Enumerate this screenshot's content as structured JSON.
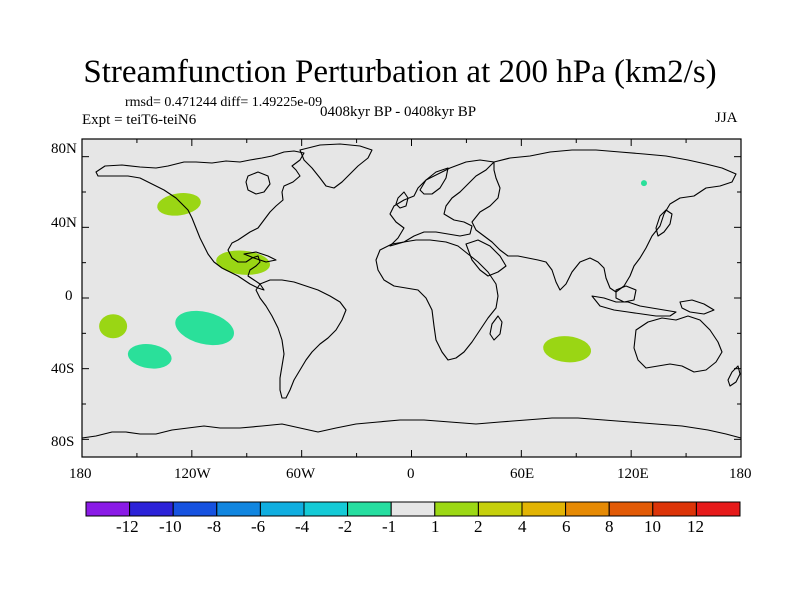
{
  "title": "Streamfunction Perturbation at 200 hPa (km2/s)",
  "stats": "rmsd= 0.471244 diff= 1.49225e-09",
  "experiment": "Expt = teiT6-teiN6",
  "period": "0408kyr BP - 0408kyr BP",
  "season": "JJA",
  "map": {
    "background_color": "#e6e6e6",
    "lat_ticks": [
      "80N",
      "40N",
      "0",
      "40S",
      "80S"
    ],
    "lon_ticks": [
      "180",
      "120W",
      "60W",
      "0",
      "60E",
      "120E",
      "180"
    ]
  },
  "anomalies": [
    {
      "name": "north-pacific-positive",
      "lon": -127,
      "lat": 53,
      "value": 1.5,
      "color": "#9ad614"
    },
    {
      "name": "central-america-positive",
      "lon": -92,
      "lat": 20,
      "value": 1.5,
      "color": "#9ad614"
    },
    {
      "name": "south-pacific-positive",
      "lon": -163,
      "lat": -16,
      "value": 1.5,
      "color": "#9ad614"
    },
    {
      "name": "southeast-pacific-negative",
      "lon": -113,
      "lat": -17,
      "value": -1.5,
      "color": "#2ae09a"
    },
    {
      "name": "southwest-pacific-negative",
      "lon": -143,
      "lat": -33,
      "value": -1.5,
      "color": "#2ae09a"
    },
    {
      "name": "south-indian-positive",
      "lon": 85,
      "lat": -29,
      "value": 1.5,
      "color": "#9ad614"
    },
    {
      "name": "siberia-negative",
      "lon": 127,
      "lat": 65,
      "value": -1.5,
      "color": "#2ae09a"
    }
  ],
  "colorbar": {
    "labels": [
      "-12",
      "-10",
      "-8",
      "-6",
      "-4",
      "-2",
      "-1",
      "1",
      "2",
      "4",
      "6",
      "8",
      "10",
      "12"
    ],
    "colors": [
      "#8a1be6",
      "#2c22d8",
      "#1652e0",
      "#1186e0",
      "#10aee0",
      "#14cad6",
      "#26dea0",
      "#e6e6e6",
      "#9cd814",
      "#c6d00c",
      "#e2b404",
      "#e68a04",
      "#e25a06",
      "#dc3408",
      "#e61a1a"
    ]
  }
}
